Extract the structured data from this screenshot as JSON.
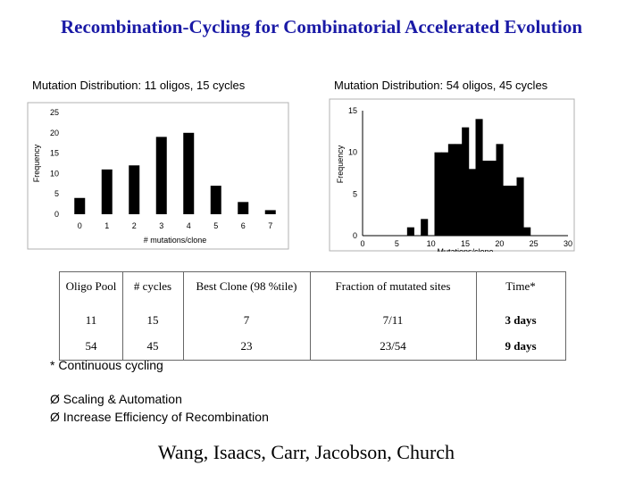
{
  "title": "Recombination-Cycling for Combinatorial Accelerated Evolution",
  "chart_data": [
    {
      "type": "bar",
      "title": "Mutation Distribution:  11 oligos, 15 cycles",
      "xlabel": "# mutations/clone",
      "ylabel": "Frequency",
      "categories": [
        "0",
        "1",
        "2",
        "3",
        "4",
        "5",
        "6",
        "7"
      ],
      "values": [
        4,
        11,
        12,
        19,
        20,
        7,
        3,
        1
      ],
      "ylim": [
        0,
        25
      ],
      "yticks": [
        "0",
        "5",
        "10",
        "15",
        "20",
        "25"
      ],
      "grid": false
    },
    {
      "type": "bar",
      "title": "Mutation Distribution:  54 oligos, 45 cycles",
      "xlabel": "Mutations/clone",
      "ylabel": "Frequency",
      "x": [
        7,
        8,
        9,
        10,
        11,
        12,
        13,
        14,
        15,
        16,
        17,
        18,
        19,
        20,
        21,
        22,
        23,
        24
      ],
      "values": [
        1,
        0,
        2,
        0,
        10,
        10,
        11,
        11,
        13,
        8,
        14,
        9,
        9,
        11,
        6,
        6,
        7,
        1
      ],
      "xlim": [
        0,
        30
      ],
      "ylim": [
        0,
        15
      ],
      "xticks": [
        "0",
        "5",
        "10",
        "15",
        "20",
        "25",
        "30"
      ],
      "yticks": [
        "0",
        "5",
        "10",
        "15"
      ],
      "grid": false
    }
  ],
  "table": {
    "headers": [
      "Oligo Pool",
      "# cycles",
      "Best Clone (98 %tile)",
      "Fraction of mutated sites",
      "Time*"
    ],
    "rows": [
      [
        "11",
        "15",
        "7",
        "7/11",
        "3 days"
      ],
      [
        "54",
        "45",
        "23",
        "23/54",
        "9 days"
      ]
    ]
  },
  "footnote": "* Continuous cycling",
  "bullets": [
    "Scaling & Automation",
    "Increase Efficiency of Recombination"
  ],
  "bullet_glyph": "Ø",
  "authors": "Wang, Isaacs, Carr, Jacobson, Church",
  "colors": {
    "title": "#1a1aa6",
    "bar": "#000000"
  }
}
